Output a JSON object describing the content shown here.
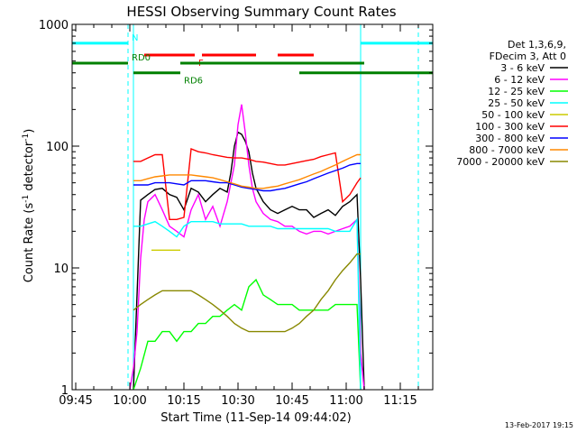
{
  "chart_data": {
    "type": "line",
    "title": "HESSI Observing Summary Count Rates",
    "xlabel": "Start Time (11-Sep-14 09:44:02)",
    "ylabel_main": "Count Rate (s",
    "ylabel_sup1": "-1",
    "ylabel_mid": " detector",
    "ylabel_sup2": "-1",
    "ylabel_end": ")",
    "y_scale": "log",
    "ylim": [
      1,
      1000
    ],
    "xlim_minutes": [
      0,
      100
    ],
    "x_ticks": [
      {
        "m": 1,
        "label": "09:45"
      },
      {
        "m": 16,
        "label": "10:00"
      },
      {
        "m": 31,
        "label": "10:15"
      },
      {
        "m": 46,
        "label": "10:30"
      },
      {
        "m": 61,
        "label": "10:45"
      },
      {
        "m": 76,
        "label": "11:00"
      },
      {
        "m": 91,
        "label": "11:15"
      }
    ],
    "y_ticks": [
      {
        "v": 1,
        "label": "1"
      },
      {
        "v": 10,
        "label": "10"
      },
      {
        "v": 100,
        "label": "100"
      },
      {
        "v": 1000,
        "label": "1000"
      }
    ],
    "legend": {
      "placement": "right",
      "header": [
        "Det 1,3,6,9,",
        "FDecim 3, Att 0"
      ],
      "entries": [
        {
          "label": "3 - 6 keV",
          "color": "#000000"
        },
        {
          "label": "6 - 12 keV",
          "color": "#ff00ff"
        },
        {
          "label": "12 - 25 keV",
          "color": "#00ff00"
        },
        {
          "label": "25 - 50 keV",
          "color": "#00ffff"
        },
        {
          "label": "50 - 100 keV",
          "color": "#cccc00"
        },
        {
          "label": "100 - 300 keV",
          "color": "#ff0000"
        },
        {
          "label": "300 - 800 keV",
          "color": "#0000ff"
        },
        {
          "label": "800 - 7000 keV",
          "color": "#ff8800"
        },
        {
          "label": "7000 - 20000 keV",
          "color": "#888800"
        }
      ]
    },
    "series": [
      {
        "name": "3 - 6 keV",
        "color": "#000000",
        "x": [
          17,
          19,
          21,
          23,
          25,
          27,
          29,
          31,
          33,
          35,
          37,
          39,
          41,
          43,
          44,
          45,
          46,
          47,
          48,
          49,
          50,
          51,
          53,
          55,
          57,
          59,
          61,
          63,
          65,
          67,
          69,
          71,
          73,
          75,
          77,
          79,
          80,
          81
        ],
        "y": [
          0,
          36,
          40,
          44,
          45,
          40,
          38,
          30,
          45,
          42,
          35,
          40,
          45,
          42,
          60,
          100,
          130,
          125,
          110,
          90,
          60,
          45,
          35,
          30,
          28,
          30,
          32,
          30,
          30,
          26,
          28,
          30,
          27,
          32,
          35,
          40,
          8,
          0
        ]
      },
      {
        "name": "6 - 12 keV",
        "color": "#ff00ff",
        "x": [
          16,
          17,
          18,
          19,
          20,
          21,
          23,
          25,
          27,
          29,
          31,
          33,
          35,
          37,
          39,
          41,
          43,
          45,
          46,
          47,
          48,
          49,
          50,
          51,
          53,
          55,
          57,
          59,
          61,
          63,
          65,
          67,
          69,
          71,
          73,
          75,
          77,
          79,
          80,
          81
        ],
        "y": [
          0,
          1.5,
          3,
          12,
          25,
          35,
          40,
          30,
          22,
          20,
          18,
          30,
          40,
          25,
          32,
          22,
          35,
          70,
          150,
          220,
          130,
          70,
          45,
          35,
          28,
          25,
          24,
          22,
          22,
          20,
          19,
          20,
          20,
          19,
          20,
          21,
          22,
          25,
          2,
          0
        ]
      },
      {
        "name": "12 - 25 keV",
        "color": "#00ff00",
        "x": [
          17,
          19,
          21,
          23,
          25,
          27,
          29,
          31,
          33,
          35,
          37,
          39,
          41,
          43,
          45,
          47,
          49,
          51,
          53,
          55,
          57,
          59,
          61,
          63,
          65,
          67,
          69,
          71,
          73,
          75,
          77,
          79,
          80
        ],
        "y": [
          0,
          1.5,
          2.5,
          2.5,
          3,
          3,
          2.5,
          3,
          3,
          3.5,
          3.5,
          4,
          4,
          4.5,
          5,
          4.5,
          7,
          8,
          6,
          5.5,
          5,
          5,
          5,
          4.5,
          4.5,
          4.5,
          4.5,
          4.5,
          5,
          5,
          5,
          5,
          1
        ]
      },
      {
        "name": "25 - 50 keV",
        "color": "#00ffff",
        "x": [
          17,
          19,
          21,
          23,
          25,
          27,
          29,
          31,
          33,
          35,
          37,
          39,
          41,
          43,
          45,
          47,
          49,
          51,
          53,
          55,
          57,
          59,
          61,
          63,
          65,
          67,
          69,
          71,
          73,
          75,
          77,
          79,
          80
        ],
        "y": [
          22,
          22,
          23,
          24,
          22,
          20,
          18,
          22,
          24,
          24,
          24,
          24,
          23,
          23,
          23,
          23,
          22,
          22,
          22,
          22,
          21,
          21,
          21,
          21,
          21,
          21,
          21,
          21,
          20,
          20,
          20,
          25,
          1
        ]
      },
      {
        "name": "50 - 100 keV",
        "color": "#cccc00",
        "x": [
          22,
          24,
          26,
          28,
          30
        ],
        "y": [
          14,
          14,
          14,
          14,
          14
        ]
      },
      {
        "name": "100 - 300 keV",
        "color": "#ff0000",
        "x": [
          17,
          19,
          21,
          23,
          25,
          27,
          29,
          31,
          33,
          35,
          37,
          39,
          41,
          43,
          45,
          47,
          49,
          51,
          53,
          55,
          57,
          59,
          61,
          63,
          65,
          67,
          69,
          71,
          73,
          75,
          77,
          79,
          80
        ],
        "y": [
          75,
          75,
          80,
          85,
          85,
          25,
          25,
          26,
          95,
          90,
          88,
          85,
          83,
          81,
          80,
          80,
          78,
          75,
          74,
          72,
          70,
          70,
          72,
          74,
          76,
          78,
          82,
          85,
          88,
          35,
          40,
          50,
          55
        ]
      },
      {
        "name": "300 - 800 keV",
        "color": "#0000ff",
        "x": [
          17,
          19,
          21,
          23,
          25,
          27,
          29,
          31,
          33,
          35,
          37,
          39,
          41,
          43,
          45,
          47,
          49,
          51,
          53,
          55,
          57,
          59,
          61,
          63,
          65,
          67,
          69,
          71,
          73,
          75,
          77,
          79,
          80
        ],
        "y": [
          48,
          48,
          48,
          50,
          50,
          50,
          49,
          48,
          52,
          52,
          52,
          51,
          50,
          50,
          48,
          46,
          45,
          44,
          43,
          43,
          44,
          45,
          47,
          49,
          51,
          54,
          57,
          60,
          63,
          66,
          70,
          72,
          72
        ]
      },
      {
        "name": "800 - 7000 keV",
        "color": "#ff8800",
        "x": [
          17,
          19,
          21,
          23,
          25,
          27,
          29,
          31,
          33,
          35,
          37,
          39,
          41,
          43,
          45,
          47,
          49,
          51,
          53,
          55,
          57,
          59,
          61,
          63,
          65,
          67,
          69,
          71,
          73,
          75,
          77,
          79,
          80
        ],
        "y": [
          52,
          52,
          54,
          56,
          57,
          58,
          58,
          58,
          58,
          57,
          56,
          55,
          53,
          51,
          49,
          47,
          46,
          45,
          45,
          46,
          47,
          49,
          51,
          53,
          56,
          59,
          62,
          66,
          70,
          75,
          80,
          85,
          85
        ]
      },
      {
        "name": "7000 - 20000 keV",
        "color": "#888800",
        "x": [
          17,
          19,
          21,
          23,
          25,
          27,
          29,
          31,
          33,
          35,
          37,
          39,
          41,
          43,
          45,
          47,
          49,
          51,
          53,
          55,
          57,
          59,
          61,
          63,
          65,
          67,
          69,
          71,
          73,
          75,
          77,
          79,
          80
        ],
        "y": [
          4.5,
          5,
          5.5,
          6,
          6.5,
          6.5,
          6.5,
          6.5,
          6.5,
          6,
          5.5,
          5,
          4.5,
          4,
          3.5,
          3.2,
          3,
          3,
          3,
          3,
          3,
          3,
          3.2,
          3.5,
          4,
          4.5,
          5.5,
          6.5,
          8,
          9.5,
          11,
          13,
          13
        ]
      }
    ],
    "status_bars": [
      {
        "label": "N",
        "color": "#00ffff",
        "y": 700,
        "segments": [
          [
            0,
            15.5
          ],
          [
            80,
            100
          ]
        ]
      },
      {
        "label": "F",
        "color": "#ff0000",
        "y": 560,
        "segments": [
          [
            20,
            34
          ],
          [
            36,
            51
          ],
          [
            57,
            67
          ]
        ]
      },
      {
        "label": "RD0",
        "color": "#008000",
        "y": 480,
        "segments": [
          [
            0,
            15.5
          ],
          [
            30,
            81
          ]
        ]
      },
      {
        "label": "RD6",
        "color": "#008000",
        "y": 400,
        "segments": [
          [
            17,
            30
          ],
          [
            63,
            100
          ]
        ]
      }
    ],
    "vlines": [
      {
        "m": 15.5,
        "color": "#00ffff",
        "style": "dashed"
      },
      {
        "m": 17,
        "color": "#00ffff",
        "style": "solid"
      },
      {
        "m": 80,
        "color": "#00ffff",
        "style": "solid"
      },
      {
        "m": 96,
        "color": "#00ffff",
        "style": "dashed"
      }
    ]
  },
  "footer": {
    "timestamp": "13-Feb-2017 19:15"
  }
}
